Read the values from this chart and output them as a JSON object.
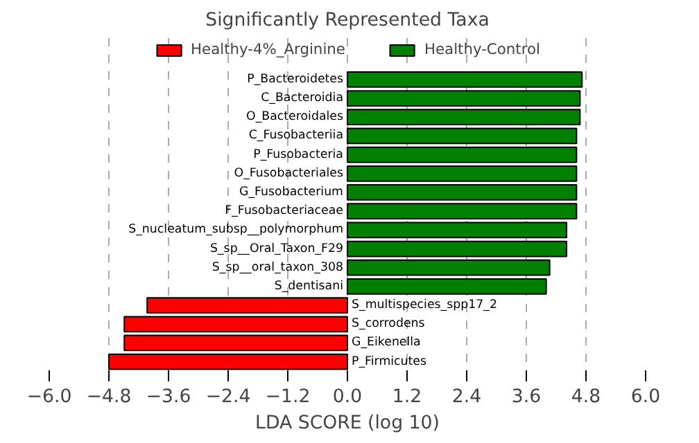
{
  "chart_data": {
    "type": "bar",
    "orientation": "horizontal",
    "title": "Significantly Represented Taxa",
    "xlabel": "LDA SCORE (log 10)",
    "categories": [
      "P_Bacteroidetes",
      "C_Bacteroidia",
      "O_Bacteroidales",
      "C_Fusobacteriia",
      "P_Fusobacteria",
      "O_Fusobacteriales",
      "G_Fusobacterium",
      "F_Fusobacteriaceae",
      "S_nucleatum_subsp__polymorphum",
      "S_sp__Oral_Taxon_F29",
      "S_sp__oral_taxon_308",
      "S_dentisani",
      "S_multispecies_spp17_2",
      "S_corrodens",
      "G_Eikenella",
      "P_Firmicutes"
    ],
    "series": [
      {
        "name": "Healthy-4%_Arginine",
        "color": "#ff0000",
        "values": [
          null,
          null,
          null,
          null,
          null,
          null,
          null,
          null,
          null,
          null,
          null,
          null,
          -4.03,
          -4.49,
          -4.49,
          -4.8
        ]
      },
      {
        "name": "Healthy-Control",
        "color": "#008000",
        "values": [
          4.72,
          4.68,
          4.68,
          4.61,
          4.61,
          4.61,
          4.61,
          4.61,
          4.41,
          4.41,
          4.07,
          4.0,
          null,
          null,
          null,
          null
        ]
      }
    ],
    "xlim": [
      -6.0,
      6.0
    ],
    "xticks": [
      {
        "value": -6.0,
        "label": "−6.0"
      },
      {
        "value": -4.8,
        "label": "−4.8"
      },
      {
        "value": -3.6,
        "label": "−3.6"
      },
      {
        "value": -2.4,
        "label": "−2.4"
      },
      {
        "value": -1.2,
        "label": "−1.2"
      },
      {
        "value": 0.0,
        "label": "0.0"
      },
      {
        "value": 1.2,
        "label": "1.2"
      },
      {
        "value": 2.4,
        "label": "2.4"
      },
      {
        "value": 3.6,
        "label": "3.6"
      },
      {
        "value": 4.8,
        "label": "4.8"
      },
      {
        "value": 6.0,
        "label": "6.0"
      }
    ],
    "grid": "x",
    "legend": "top",
    "tick_labels": "x"
  }
}
